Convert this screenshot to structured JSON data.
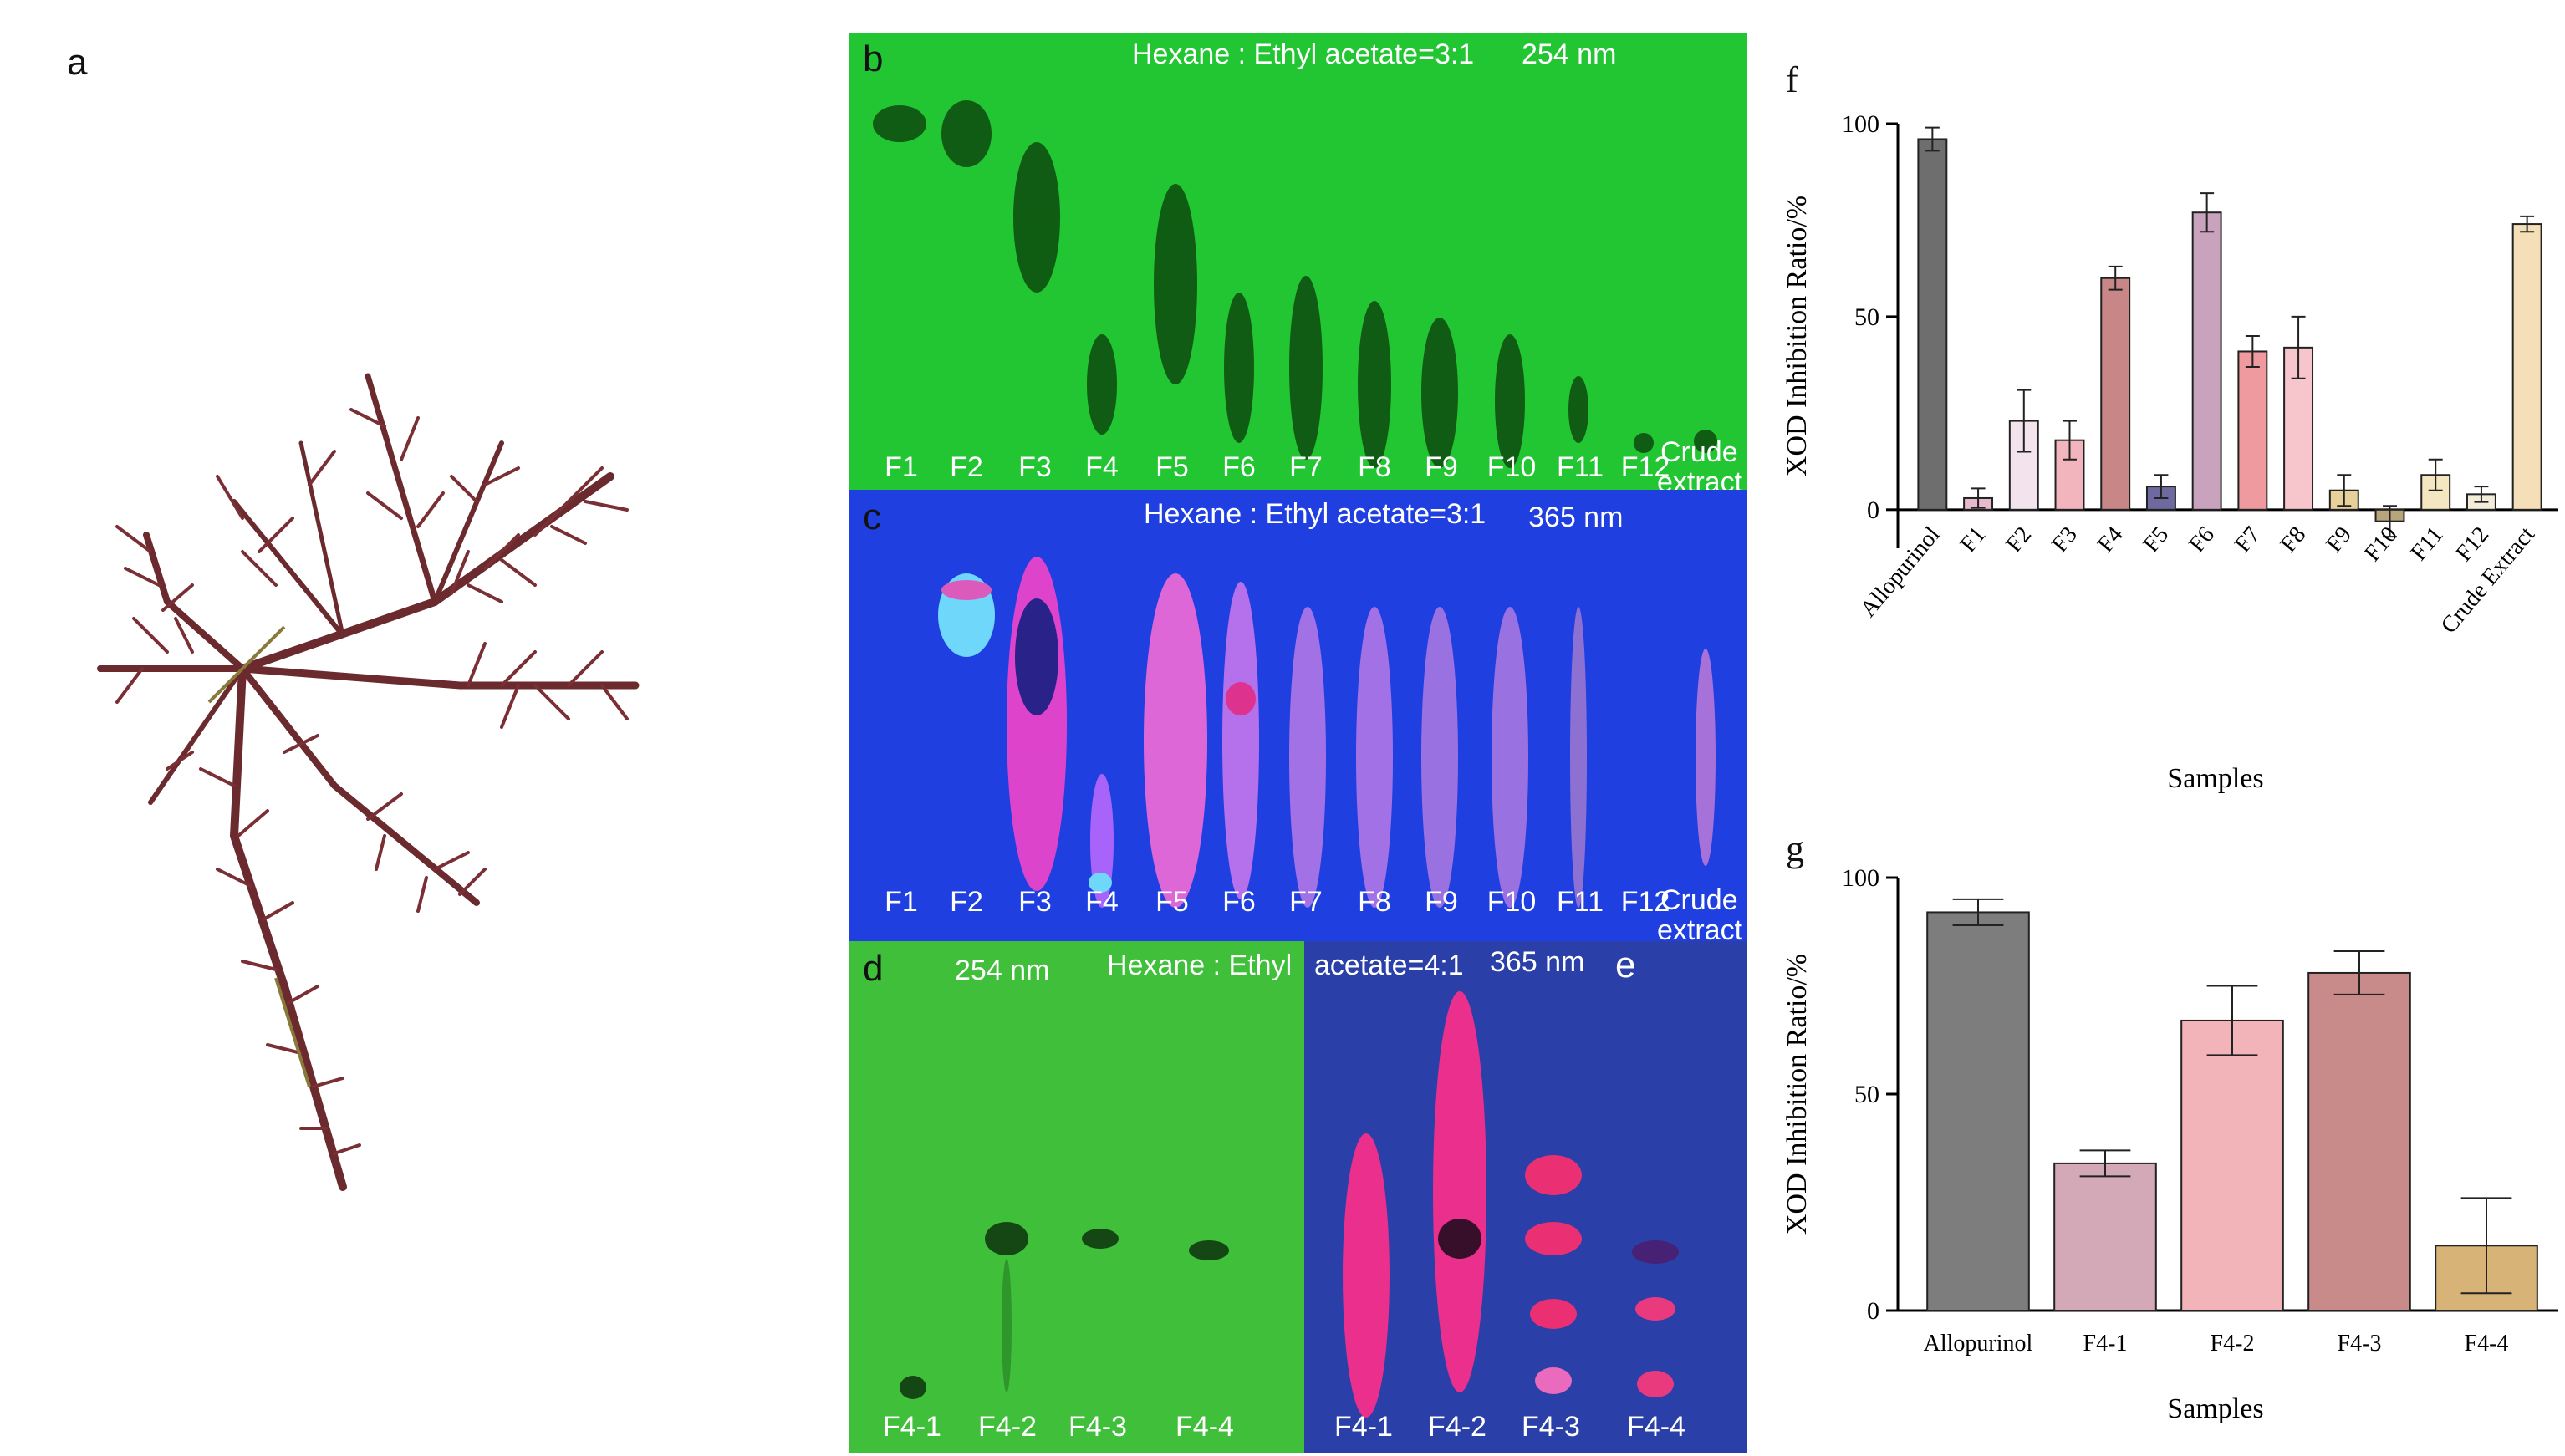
{
  "panels": {
    "a": "a",
    "b": "b",
    "c": "c",
    "d": "d",
    "e": "e",
    "f": "f",
    "g": "g"
  },
  "tlc_b": {
    "solvent": "Hexane : Ethyl acetate=3:1",
    "wavelength": "254 nm",
    "lanes": [
      "F1",
      "F2",
      "F3",
      "F4",
      "F5",
      "F6",
      "F7",
      "F8",
      "F9",
      "F10",
      "F11",
      "F12"
    ],
    "crude_label_1": "Crude",
    "crude_label_2": "extract"
  },
  "tlc_c": {
    "solvent": "Hexane : Ethyl acetate=3:1",
    "wavelength": "365 nm",
    "lanes": [
      "F1",
      "F2",
      "F3",
      "F4",
      "F5",
      "F6",
      "F7",
      "F8",
      "F9",
      "F10",
      "F11",
      "F12"
    ],
    "crude_label_1": "Crude",
    "crude_label_2": "extract"
  },
  "tlc_de": {
    "wavelength_d": "254 nm",
    "solvent_part1": "Hexane : Ethyl",
    "solvent_part2": "acetate=4:1",
    "wavelength_e": "365 nm",
    "lanes_d": [
      "F4-1",
      "F4-2",
      "F4-3",
      "F4-4"
    ],
    "lanes_e": [
      "F4-1",
      "F4-2",
      "F4-3",
      "F4-4"
    ]
  },
  "colors": {
    "tlc_254": "#22c532",
    "tlc_365": "#1f3fe0",
    "tlc_d": "#3fbf3a",
    "tlc_e": "#2a3fa8"
  },
  "chart_data": [
    {
      "id": "f",
      "type": "bar",
      "title": "",
      "xlabel": "Samples",
      "ylabel": "XOD Inhibition Ratio/%",
      "ylim": [
        -10,
        100
      ],
      "yticks": [
        0,
        50,
        100
      ],
      "categories": [
        "Allopurinol",
        "F1",
        "F2",
        "F3",
        "F4",
        "F5",
        "F6",
        "F7",
        "F8",
        "F9",
        "F10",
        "F11",
        "F12",
        "Crude Extract"
      ],
      "values": [
        96,
        3,
        23,
        18,
        60,
        6,
        77,
        41,
        42,
        5,
        -3,
        9,
        4,
        74
      ],
      "errors": [
        3,
        2.5,
        8,
        5,
        3,
        3,
        5,
        4,
        8,
        4,
        4,
        4,
        2,
        2
      ],
      "colors": [
        "#6e6e6e",
        "#e6b9cc",
        "#f3e3ec",
        "#f2b5bd",
        "#c98686",
        "#6e6aa0",
        "#c9a3be",
        "#ee9a9e",
        "#f6c6cc",
        "#e8d09a",
        "#b8a57c",
        "#f3e6c0",
        "#f3ecd9",
        "#f4dfb8"
      ]
    },
    {
      "id": "g",
      "type": "bar",
      "title": "",
      "xlabel": "Samples",
      "ylabel": "XOD Inhibition Ratio/%",
      "ylim": [
        0,
        100
      ],
      "yticks": [
        0,
        50,
        100
      ],
      "categories": [
        "Allopurinol",
        "F4-1",
        "F4-2",
        "F4-3",
        "F4-4"
      ],
      "values": [
        92,
        34,
        67,
        78,
        15
      ],
      "errors": [
        3,
        3,
        8,
        5,
        11
      ],
      "colors": [
        "#7d7d7d",
        "#d3a9b8",
        "#f3b4b9",
        "#c98a8a",
        "#d8b377"
      ]
    }
  ]
}
